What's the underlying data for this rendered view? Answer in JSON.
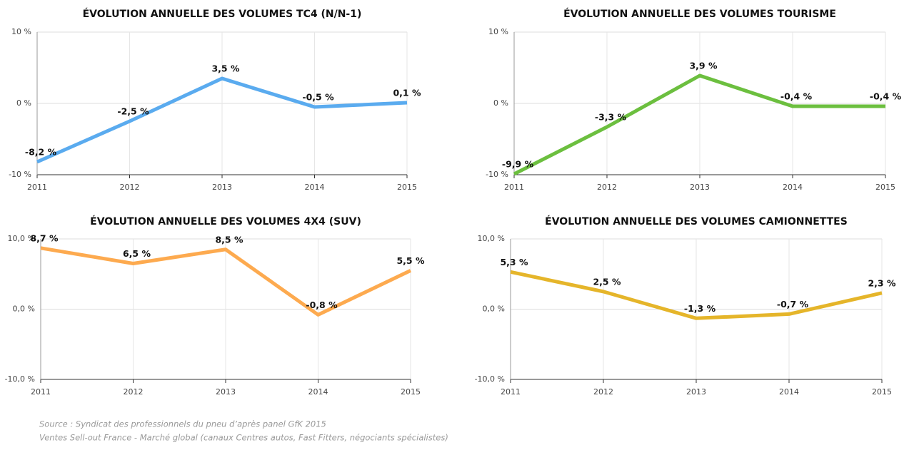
{
  "chart_data": [
    {
      "type": "line",
      "title": "ÉVOLUTION ANNUELLE DES VOLUMES TC4 (N/N-1)",
      "categories": [
        "2011",
        "2012",
        "2013",
        "2014",
        "2015"
      ],
      "values": [
        -8.2,
        -2.5,
        3.5,
        -0.5,
        0.1
      ],
      "value_labels": [
        "-8,2 %",
        "-2,5 %",
        "3,5 %",
        "-0,5 %",
        "0,1 %"
      ],
      "color": "#5aabef",
      "ylim": [
        -10,
        10
      ],
      "yticks": [
        {
          "value": -10,
          "label": "-10 %"
        },
        {
          "value": 0,
          "label": "0 %"
        },
        {
          "value": 10,
          "label": "10 %"
        }
      ],
      "grid": true
    },
    {
      "type": "line",
      "title": "ÉVOLUTION ANNUELLE DES VOLUMES TOURISME",
      "categories": [
        "2011",
        "2012",
        "2013",
        "2014",
        "2015"
      ],
      "values": [
        -9.9,
        -3.3,
        3.9,
        -0.4,
        -0.4
      ],
      "value_labels": [
        "-9,9 %",
        "-3,3 %",
        "3,9 %",
        "-0,4 %",
        "-0,4 %"
      ],
      "color": "#6cbf3f",
      "ylim": [
        -10,
        10
      ],
      "yticks": [
        {
          "value": -10,
          "label": "-10 %"
        },
        {
          "value": 0,
          "label": "0 %"
        },
        {
          "value": 10,
          "label": "10 %"
        }
      ],
      "grid": true
    },
    {
      "type": "line",
      "title": "ÉVOLUTION ANNUELLE DES VOLUMES 4X4 (SUV)",
      "categories": [
        "2011",
        "2012",
        "2013",
        "2014",
        "2015"
      ],
      "values": [
        8.7,
        6.5,
        8.5,
        -0.8,
        5.5
      ],
      "value_labels": [
        "8,7 %",
        "6,5 %",
        "8,5 %",
        "-0,8 %",
        "5,5 %"
      ],
      "color": "#fdaa4f",
      "ylim": [
        -10,
        10
      ],
      "yticks": [
        {
          "value": -10,
          "label": "-10,0 %"
        },
        {
          "value": 0,
          "label": "0,0 %"
        },
        {
          "value": 10,
          "label": "10,0 %"
        }
      ],
      "grid": true
    },
    {
      "type": "line",
      "title": "ÉVOLUTION ANNUELLE DES VOLUMES CAMIONNETTES",
      "categories": [
        "2011",
        "2012",
        "2013",
        "2014",
        "2015"
      ],
      "values": [
        5.3,
        2.5,
        -1.3,
        -0.7,
        2.3
      ],
      "value_labels": [
        "5,3 %",
        "2,5 %",
        "-1,3 %",
        "-0,7 %",
        "2,3 %"
      ],
      "color": "#e5b52a",
      "ylim": [
        -10,
        10
      ],
      "yticks": [
        {
          "value": -10,
          "label": "-10,0 %"
        },
        {
          "value": 0,
          "label": "0,0 %"
        },
        {
          "value": 10,
          "label": "10,0 %"
        }
      ],
      "grid": true
    }
  ],
  "footnote": [
    "Source : Syndicat des professionnels du pneu d’après panel GfK 2015",
    "Ventes Sell-out France - Marché global (canaux Centres autos, Fast Fitters, négociants spécialistes)"
  ]
}
